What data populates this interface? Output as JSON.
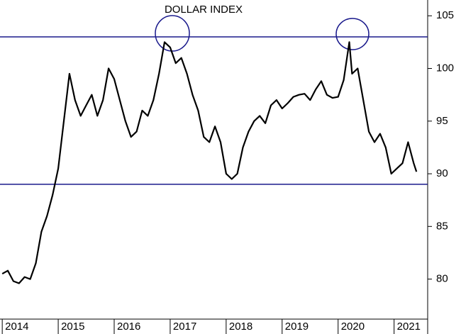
{
  "chart_data": {
    "type": "line",
    "title": "DOLLAR INDEX",
    "color": "#000000",
    "reference_color": "#1a1a8c",
    "reference_lines": [
      103,
      89
    ],
    "x": [
      2014.0,
      2014.1,
      2014.2,
      2014.3,
      2014.4,
      2014.5,
      2014.6,
      2014.7,
      2014.8,
      2014.9,
      2015.0,
      2015.1,
      2015.2,
      2015.3,
      2015.4,
      2015.5,
      2015.6,
      2015.7,
      2015.8,
      2015.9,
      2016.0,
      2016.1,
      2016.2,
      2016.3,
      2016.4,
      2016.5,
      2016.6,
      2016.7,
      2016.8,
      2016.9,
      2017.0,
      2017.1,
      2017.2,
      2017.3,
      2017.4,
      2017.5,
      2017.6,
      2017.7,
      2017.8,
      2017.9,
      2018.0,
      2018.1,
      2018.2,
      2018.3,
      2018.4,
      2018.5,
      2018.6,
      2018.7,
      2018.8,
      2018.9,
      2019.0,
      2019.1,
      2019.2,
      2019.3,
      2019.4,
      2019.5,
      2019.6,
      2019.7,
      2019.8,
      2019.9,
      2020.0,
      2020.1,
      2020.2,
      2020.25,
      2020.35,
      2020.45,
      2020.55,
      2020.65,
      2020.75,
      2020.85,
      2020.95,
      2021.05,
      2021.15,
      2021.25,
      2021.35,
      2021.4
    ],
    "values": [
      80.5,
      80.8,
      79.8,
      79.6,
      80.2,
      80.0,
      81.5,
      84.5,
      86.0,
      88.0,
      90.5,
      95.0,
      99.5,
      97.0,
      95.5,
      96.5,
      97.5,
      95.5,
      97.0,
      100.0,
      99.0,
      97.0,
      95.0,
      93.5,
      94.0,
      96.0,
      95.5,
      97.0,
      99.5,
      102.5,
      102.0,
      100.5,
      101.0,
      99.5,
      97.5,
      96.0,
      93.5,
      93.0,
      94.5,
      93.0,
      90.0,
      89.5,
      90.0,
      92.5,
      94.0,
      95.0,
      95.5,
      94.8,
      96.5,
      97.0,
      96.2,
      96.7,
      97.3,
      97.5,
      97.6,
      97.0,
      98.0,
      98.8,
      97.5,
      97.2,
      97.3,
      98.9,
      102.5,
      99.5,
      100.0,
      97.0,
      94.0,
      93.0,
      93.8,
      92.5,
      90.0,
      90.5,
      91.0,
      93.0,
      91.0,
      90.2
    ],
    "xlim": [
      2013.96,
      2021.6
    ],
    "xticks": [
      2014,
      2015,
      2016,
      2017,
      2018,
      2019,
      2020,
      2021
    ],
    "ylim": [
      76.2,
      106.5
    ],
    "yticks": [
      80,
      85,
      90,
      95,
      100,
      105
    ]
  }
}
